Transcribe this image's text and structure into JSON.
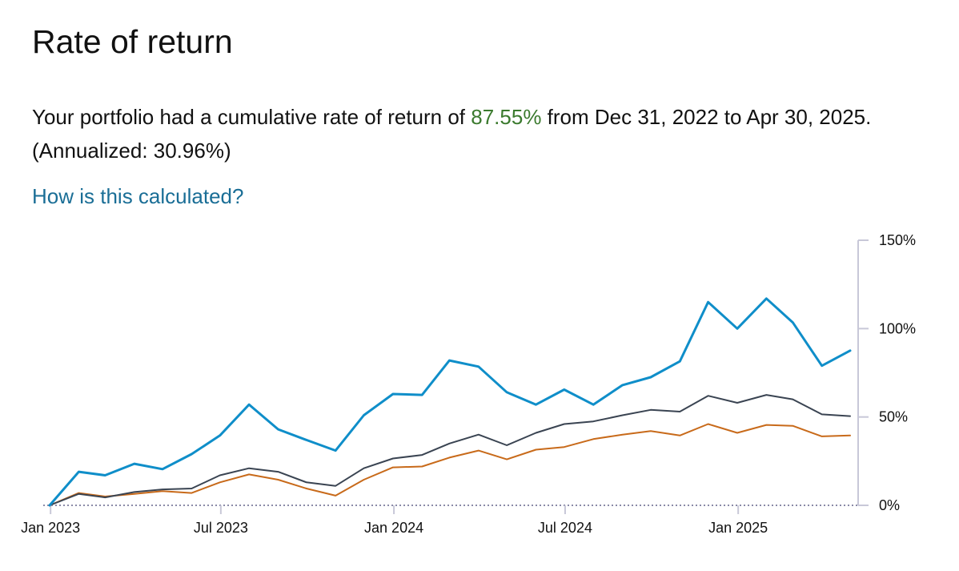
{
  "header": {
    "title": "Rate of return"
  },
  "summary": {
    "text_before": "Your portfolio had a cumulative rate of return of ",
    "cumulative_return": "87.55%",
    "text_after": " from Dec 31, 2022 to Apr 30, 2025. (Annualized: 30.96%)"
  },
  "link": {
    "label": "How is this calculated?"
  },
  "colors": {
    "positive_return": "#3b7a2e",
    "link": "#1a6e96",
    "axis": "#c8c8d8",
    "baseline": "#8a8aa8"
  },
  "chart_data": {
    "type": "line",
    "x": [
      "2022-12-31",
      "2023-01-31",
      "2023-02-28",
      "2023-03-31",
      "2023-04-30",
      "2023-05-31",
      "2023-06-30",
      "2023-07-31",
      "2023-08-31",
      "2023-09-30",
      "2023-10-31",
      "2023-11-30",
      "2023-12-31",
      "2024-01-31",
      "2024-02-29",
      "2024-03-31",
      "2024-04-30",
      "2024-05-31",
      "2024-06-30",
      "2024-07-31",
      "2024-08-31",
      "2024-09-30",
      "2024-10-31",
      "2024-11-30",
      "2024-12-31",
      "2025-01-31",
      "2025-02-28",
      "2025-03-31",
      "2025-04-30"
    ],
    "series": [
      {
        "color": "#0f8ec9",
        "values": [
          0,
          19,
          17,
          23.5,
          20.5,
          29,
          39.5,
          57,
          43,
          37,
          31,
          51,
          63,
          62.5,
          82,
          78.5,
          64,
          57,
          65.5,
          57,
          68,
          72.5,
          81.5,
          115,
          100,
          117,
          103.5,
          79,
          87.55
        ]
      },
      {
        "color": "#3a4452",
        "values": [
          0,
          6.5,
          4.5,
          7.5,
          9,
          9.5,
          17,
          21,
          19,
          13,
          11,
          21,
          26.5,
          28.5,
          35,
          40,
          34,
          41,
          46,
          47.5,
          51,
          54,
          53,
          62,
          58,
          62.5,
          60,
          51.5,
          50.5
        ]
      },
      {
        "color": "#c86a1a",
        "values": [
          0,
          7,
          5,
          6.5,
          8,
          7,
          13,
          17.5,
          14.5,
          9.5,
          5.5,
          14.5,
          21.5,
          22,
          27,
          31,
          26,
          31.5,
          33,
          37.5,
          40,
          42,
          39.5,
          46,
          41,
          45.5,
          45,
          39,
          39.5
        ]
      }
    ],
    "x_ticks": [
      "Jan 2023",
      "Jul 2023",
      "Jan 2024",
      "Jul 2024",
      "Jan 2025"
    ],
    "x_tick_dates": [
      "2023-01-01",
      "2023-07-01",
      "2024-01-01",
      "2024-07-01",
      "2025-01-01"
    ],
    "y_ticks": [
      "0%",
      "50%",
      "100%",
      "150%"
    ],
    "y_tick_values": [
      0,
      50,
      100,
      150
    ],
    "ylim": [
      0,
      150
    ],
    "y_axis_position": "right",
    "grid": false
  }
}
